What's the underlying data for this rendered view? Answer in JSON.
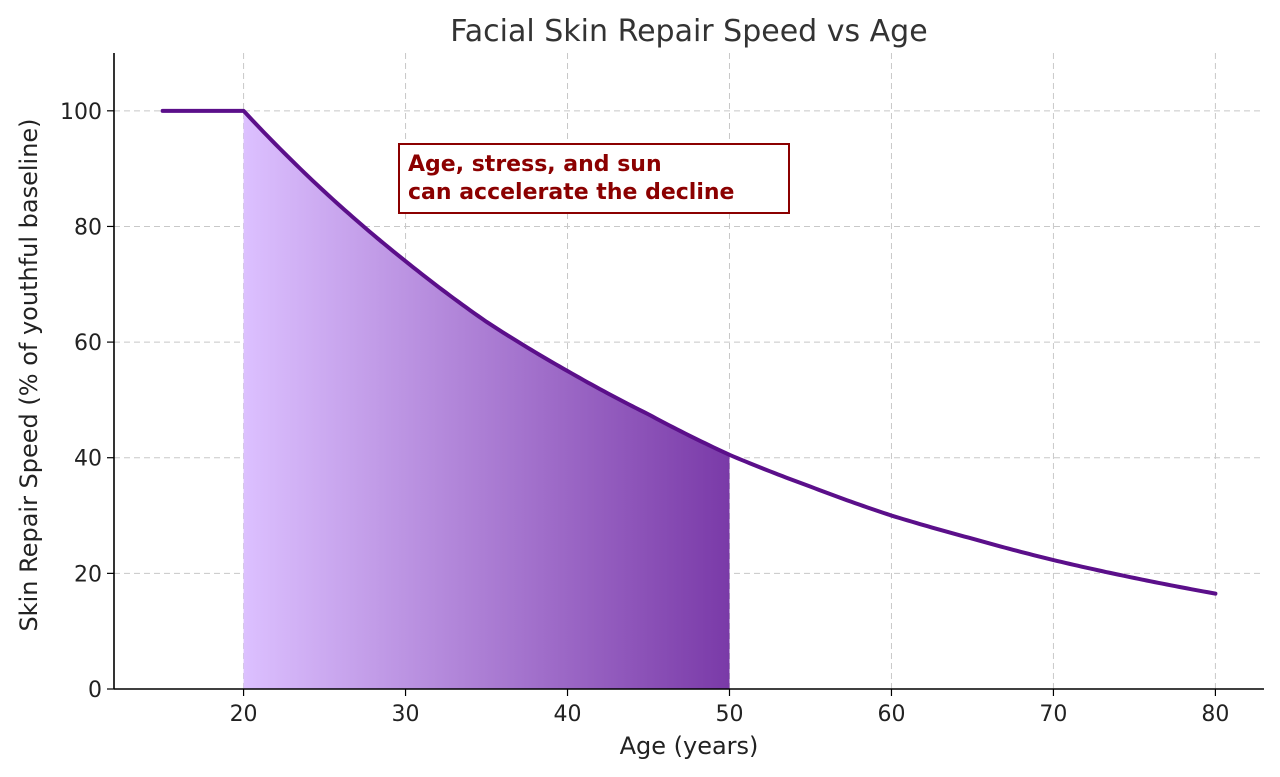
{
  "chart_data": {
    "type": "line",
    "title": "Facial Skin Repair Speed vs Age",
    "xlabel": "Age (years)",
    "ylabel": "Skin Repair Speed (% of youthful baseline)",
    "xlim": [
      12,
      83
    ],
    "ylim": [
      0,
      110
    ],
    "x_ticks": [
      20,
      30,
      40,
      50,
      60,
      70,
      80
    ],
    "y_ticks": [
      0,
      20,
      40,
      60,
      80,
      100
    ],
    "grid": true,
    "series": [
      {
        "x": [
          15,
          20,
          25,
          30,
          35,
          40,
          45,
          50,
          55,
          60,
          65,
          70,
          75,
          80
        ],
        "y": [
          100,
          100,
          86,
          74,
          63.5,
          55,
          47.5,
          40.5,
          35,
          30,
          26,
          22.3,
          19.2,
          16.5
        ],
        "color": "#5b0f8a"
      }
    ],
    "shaded_region": {
      "x_start": 20,
      "x_end": 50,
      "color_start": "#dcc0ff",
      "color_end": "#7a3aa8"
    },
    "annotation": {
      "lines": [
        "Age, stress, and sun",
        "can accelerate the decline"
      ],
      "color": "#8b0000"
    }
  }
}
